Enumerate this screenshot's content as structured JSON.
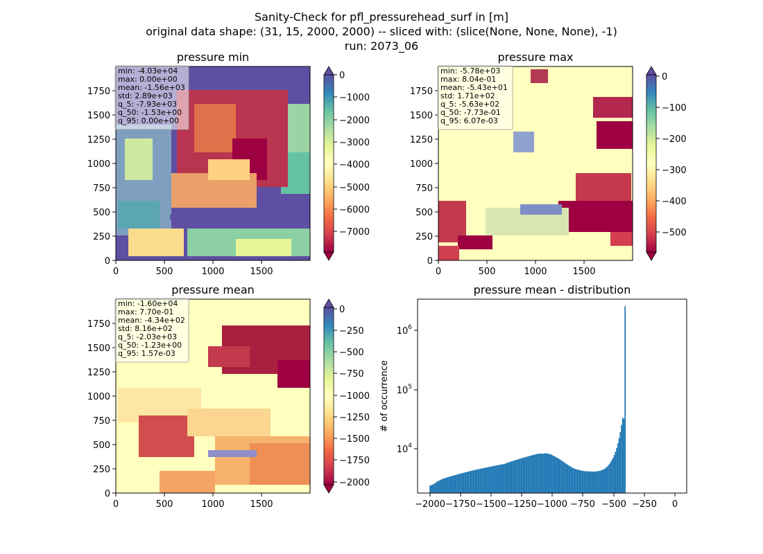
{
  "figure": {
    "title_lines": [
      "Sanity-Check for pfl_pressurehead_surf in [m]",
      "original data shape: (31, 15, 2000, 2000) -- sliced with: (slice(None, None, None), -1)",
      "run: 2073_06"
    ]
  },
  "panels": [
    {
      "title": "pressure min",
      "x_ticks": [
        "0",
        "500",
        "1000",
        "1500"
      ],
      "y_ticks": [
        "0",
        "250",
        "500",
        "750",
        "1000",
        "1250",
        "1500",
        "1750"
      ],
      "stats": [
        "min: -4.03e+04",
        "max: 0.00e+00",
        "mean: -1.56e+03",
        "std: 2.89e+03",
        "q_5: -7.93e+03",
        "q_50: -1.53e+00",
        "q_95: 0.00e+00"
      ],
      "colorbar": {
        "ticks": [
          "0",
          "−1000",
          "−2000",
          "−3000",
          "−4000",
          "−5000",
          "−6000",
          "−7000"
        ],
        "vmin": -7930,
        "vmax": 0
      }
    },
    {
      "title": "pressure max",
      "x_ticks": [
        "0",
        "500",
        "1000",
        "1500"
      ],
      "y_ticks": [
        "0",
        "250",
        "500",
        "750",
        "1000",
        "1250",
        "1500",
        "1750"
      ],
      "stats": [
        "min: -5.78e+03",
        "max: 8.04e-01",
        "mean: -5.43e+01",
        "std: 1.71e+02",
        "q_5: -5.63e+02",
        "q_50: -7.73e-01",
        "q_95: 6.07e-03"
      ],
      "colorbar": {
        "ticks": [
          "0",
          "−100",
          "−200",
          "−300",
          "−400",
          "−500"
        ],
        "vmin": -563,
        "vmax": 0.006
      }
    },
    {
      "title": "pressure mean",
      "x_ticks": [
        "0",
        "500",
        "1000",
        "1500"
      ],
      "y_ticks": [
        "0",
        "250",
        "500",
        "750",
        "1000",
        "1250",
        "1500",
        "1750"
      ],
      "stats": [
        "min: -1.60e+04",
        "max: 7.70e-01",
        "mean: -4.34e+02",
        "std: 8.16e+02",
        "q_5: -2.03e+03",
        "q_50: -1.23e+00",
        "q_95: 1.57e-03"
      ],
      "colorbar": {
        "ticks": [
          "0",
          "−250",
          "−500",
          "−750",
          "−1000",
          "−1250",
          "−1500",
          "−1750",
          "−2000"
        ],
        "vmin": -2030,
        "vmax": 0.0016
      }
    }
  ],
  "histogram": {
    "title": "pressure mean - distribution",
    "ylabel": "# of occurrence",
    "x_ticks": [
      "−2000",
      "−1750",
      "−1500",
      "−1250",
      "−1000",
      "−750",
      "−500",
      "−250",
      "0"
    ],
    "y_ticks": [
      "10",
      "10",
      "10"
    ],
    "y_tick_exponents": [
      "4",
      "5",
      "6"
    ]
  },
  "chart_data": [
    {
      "type": "heatmap",
      "title": "pressure min",
      "xlim": [
        0,
        2000
      ],
      "ylim": [
        0,
        2000
      ],
      "colormap": "Spectral",
      "clim": [
        -7930,
        0
      ],
      "colors": {
        "high": "#5e4fa2",
        "mid": "#ffffbf",
        "low": "#9e0142"
      }
    },
    {
      "type": "heatmap",
      "title": "pressure max",
      "xlim": [
        0,
        2000
      ],
      "ylim": [
        0,
        2000
      ],
      "colormap": "Spectral",
      "clim": [
        -563,
        0.006
      ]
    },
    {
      "type": "heatmap",
      "title": "pressure mean",
      "xlim": [
        0,
        2000
      ],
      "ylim": [
        0,
        2000
      ],
      "colormap": "Spectral",
      "clim": [
        -2030,
        0.0016
      ]
    },
    {
      "type": "bar",
      "title": "pressure mean - distribution",
      "ylabel": "# of occurrence",
      "yscale": "log",
      "xlim": [
        -2130,
        120
      ],
      "ylim": [
        2000,
        3000000
      ],
      "bin_start": -2030,
      "bin_width": 10,
      "color": "#1f77b4",
      "values": [
        2650,
        2700,
        2750,
        2800,
        2900,
        3000,
        3100,
        3150,
        3250,
        3300,
        3400,
        3450,
        3500,
        3550,
        3600,
        3650,
        3700,
        3750,
        3800,
        3850,
        3900,
        3950,
        4000,
        4050,
        4100,
        4150,
        4200,
        4250,
        4300,
        4350,
        4400,
        4450,
        4500,
        4550,
        4600,
        4650,
        4700,
        4750,
        4800,
        4850,
        4900,
        4950,
        5000,
        5050,
        5100,
        5150,
        5200,
        5250,
        5300,
        5350,
        5400,
        5450,
        5500,
        5550,
        5600,
        5650,
        5700,
        5750,
        5800,
        5850,
        5900,
        5950,
        6000,
        6100,
        6200,
        6300,
        6400,
        6500,
        6600,
        6700,
        6800,
        6900,
        7000,
        7100,
        7200,
        7300,
        7400,
        7500,
        7600,
        7700,
        7800,
        7900,
        8000,
        8100,
        8200,
        8300,
        8400,
        8500,
        8600,
        8700,
        8800,
        8850,
        8900,
        8850,
        8800,
        8900,
        8950,
        9000,
        8900,
        8800,
        8700,
        8600,
        8400,
        8200,
        8000,
        7800,
        7600,
        7400,
        7200,
        7000,
        6800,
        6600,
        6400,
        6200,
        6000,
        5800,
        5650,
        5500,
        5350,
        5200,
        5100,
        5000,
        4900,
        4850,
        4800,
        4750,
        4700,
        4650,
        4600,
        4580,
        4560,
        4550,
        4540,
        4530,
        4520,
        4510,
        4500,
        4500,
        4520,
        4540,
        4560,
        4600,
        4650,
        4700,
        4800,
        4900,
        5000,
        5200,
        5400,
        5700,
        6000,
        6500,
        7000,
        7600,
        8400,
        9500,
        11000,
        13000,
        16000,
        20000,
        26000,
        34000,
        33000,
        2300000
      ]
    }
  ]
}
